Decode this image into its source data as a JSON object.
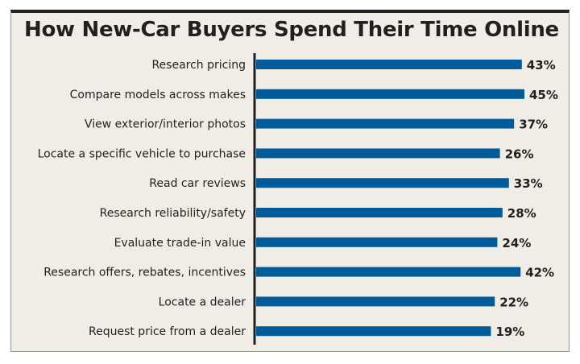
{
  "chart_data": {
    "type": "bar",
    "orientation": "horizontal",
    "title": "How New-Car Buyers Spend Their Time Online",
    "categories": [
      "Research pricing",
      "Compare models across makes",
      "View exterior/interior photos",
      "Locate a specific vehicle to purchase",
      "Read car reviews",
      "Research reliability/safety",
      "Evaluate trade-in value",
      "Research offers, rebates, incentives",
      "Locate a dealer",
      "Request price from a dealer"
    ],
    "values": [
      43,
      45,
      37,
      26,
      33,
      28,
      24,
      42,
      22,
      19
    ],
    "value_labels": [
      "43%",
      "45%",
      "37%",
      "26%",
      "33%",
      "28%",
      "24%",
      "42%",
      "22%",
      "19%"
    ],
    "unit": "%",
    "grid": false,
    "legend": "none",
    "bar_color": "#005b9a",
    "background_color": "#f0ece6"
  }
}
